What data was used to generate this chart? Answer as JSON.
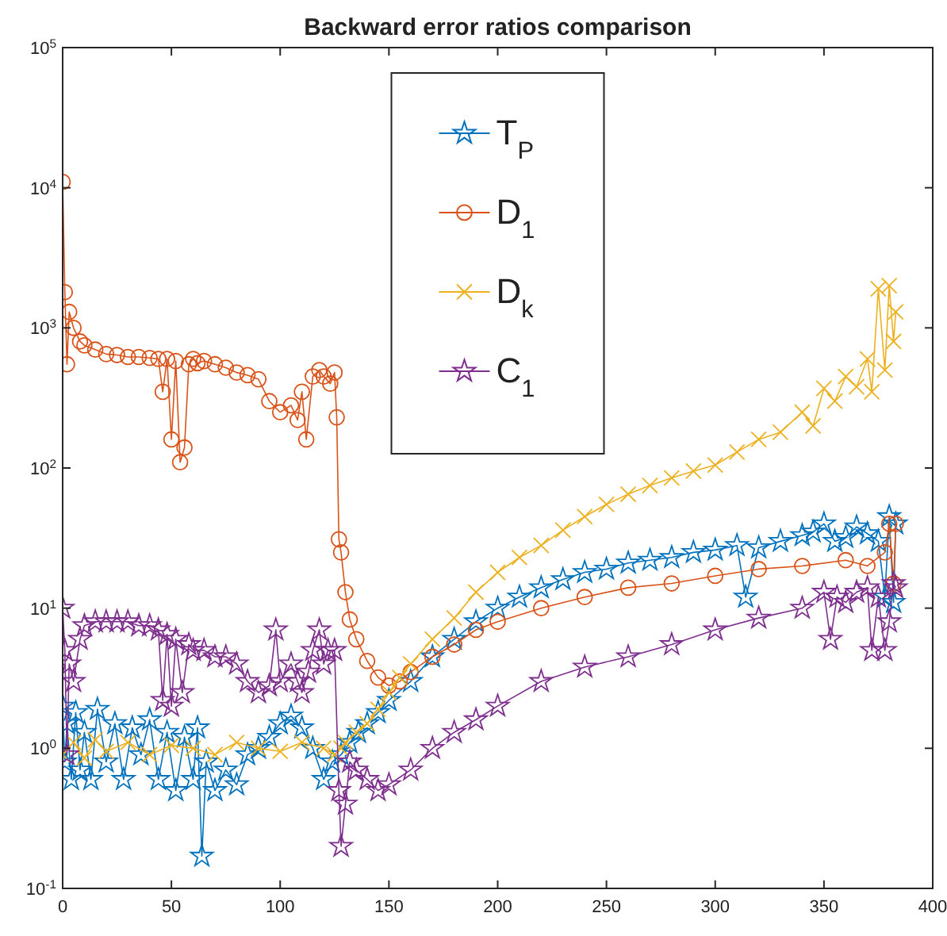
{
  "chart_data": {
    "type": "line",
    "title": "Backward error ratios comparison",
    "log": "y",
    "grid": false,
    "legend": "top",
    "xlim": [
      0,
      400
    ],
    "xticks": [
      0,
      50,
      100,
      150,
      200,
      250,
      300,
      350,
      400
    ],
    "ylim": [
      0.1,
      100000
    ],
    "yticks": [
      {
        "value": 0.1,
        "label": "10$^{-1}$"
      },
      {
        "value": 1,
        "label": "10$^{0}$"
      },
      {
        "value": 10,
        "label": "10$^{1}$"
      },
      {
        "value": 100,
        "label": "10$^{2}$"
      },
      {
        "value": 1000,
        "label": "10$^{3}$"
      },
      {
        "value": 10000,
        "label": "10$^{4}$"
      },
      {
        "value": 100000,
        "label": "10$^{5}$"
      }
    ],
    "series": [
      {
        "name": "T$_{P}$",
        "color": "#0072bd",
        "marker": "star",
        "x": [
          0,
          1,
          2,
          4,
          6,
          8,
          10,
          13,
          16,
          20,
          24,
          28,
          32,
          36,
          40,
          44,
          48,
          52,
          56,
          60,
          62,
          64,
          66,
          70,
          75,
          80,
          85,
          90,
          95,
          100,
          105,
          110,
          115,
          120,
          124,
          128,
          132,
          136,
          140,
          145,
          150,
          160,
          170,
          180,
          190,
          200,
          210,
          220,
          230,
          240,
          250,
          260,
          270,
          280,
          290,
          300,
          310,
          314,
          320,
          330,
          340,
          345,
          350,
          355,
          360,
          365,
          370,
          375,
          378,
          380,
          382,
          383
        ],
        "values": [
          2,
          0.8,
          1.5,
          0.6,
          1.8,
          0.7,
          1.3,
          0.6,
          1.9,
          0.8,
          1.5,
          0.6,
          1.4,
          0.9,
          1.6,
          0.6,
          1.3,
          0.5,
          1.2,
          0.6,
          1.4,
          0.17,
          0.8,
          0.5,
          0.7,
          0.55,
          0.9,
          1.0,
          1.2,
          1.5,
          1.7,
          1.4,
          1.0,
          0.6,
          0.8,
          0.9,
          1.1,
          1.3,
          1.5,
          1.8,
          2.2,
          3,
          4.5,
          6,
          8,
          10,
          12,
          14,
          16,
          18,
          19,
          21,
          22,
          23,
          25,
          26,
          28,
          12,
          27,
          30,
          33,
          35,
          40,
          30,
          32,
          38,
          34,
          30,
          12,
          45,
          11,
          40
        ]
      },
      {
        "name": "D$_{1}$",
        "color": "#d95319",
        "marker": "circle",
        "x": [
          0,
          1,
          2,
          3,
          5,
          8,
          10,
          15,
          20,
          25,
          30,
          35,
          40,
          44,
          46,
          48,
          50,
          52,
          54,
          56,
          58,
          60,
          62,
          65,
          70,
          75,
          80,
          85,
          90,
          95,
          100,
          105,
          108,
          110,
          112,
          115,
          118,
          120,
          123,
          125,
          126,
          127,
          128,
          130,
          132,
          135,
          140,
          145,
          150,
          155,
          160,
          170,
          180,
          190,
          200,
          220,
          240,
          260,
          280,
          300,
          320,
          340,
          360,
          370,
          378,
          380,
          382,
          383
        ],
        "values": [
          11000,
          1800,
          550,
          1300,
          1000,
          800,
          750,
          700,
          650,
          640,
          620,
          620,
          610,
          600,
          350,
          600,
          160,
          580,
          110,
          140,
          550,
          600,
          560,
          580,
          550,
          520,
          480,
          460,
          430,
          300,
          250,
          280,
          220,
          350,
          160,
          450,
          500,
          450,
          400,
          480,
          230,
          31,
          25,
          13,
          8.3,
          6,
          4.2,
          3.2,
          2.8,
          3,
          3.5,
          4.5,
          5.5,
          7,
          8,
          10,
          12,
          14,
          15,
          17,
          19,
          20,
          22,
          20,
          25,
          40,
          15,
          40
        ]
      },
      {
        "name": "D$_{k}$",
        "color": "#edb120",
        "marker": "cross",
        "x": [
          0,
          5,
          10,
          15,
          20,
          30,
          40,
          50,
          60,
          70,
          80,
          90,
          100,
          110,
          120,
          125,
          128,
          130,
          135,
          140,
          145,
          150,
          155,
          160,
          170,
          180,
          190,
          200,
          210,
          220,
          230,
          240,
          250,
          260,
          270,
          280,
          290,
          300,
          310,
          320,
          330,
          340,
          345,
          350,
          355,
          360,
          365,
          370,
          372,
          375,
          378,
          380,
          382,
          383
        ],
        "values": [
          0.9,
          1.1,
          0.85,
          1.15,
          0.95,
          1.1,
          0.9,
          1.05,
          1.0,
          0.9,
          1.1,
          1.0,
          0.95,
          1.1,
          1.0,
          0.9,
          1.0,
          1.1,
          1.3,
          1.5,
          1.9,
          2.5,
          3.2,
          4,
          6,
          8.5,
          13,
          18,
          23,
          28,
          36,
          45,
          55,
          65,
          75,
          85,
          95,
          105,
          130,
          160,
          180,
          250,
          200,
          370,
          300,
          450,
          380,
          600,
          350,
          1900,
          500,
          2000,
          800,
          1300
        ]
      },
      {
        "name": "C$_{1}$",
        "color": "#7e2f8e",
        "marker": "star",
        "x": [
          0,
          1,
          2,
          3,
          5,
          8,
          10,
          15,
          20,
          25,
          30,
          35,
          40,
          44,
          46,
          48,
          50,
          52,
          55,
          58,
          60,
          65,
          70,
          75,
          80,
          85,
          90,
          95,
          98,
          100,
          105,
          108,
          110,
          113,
          115,
          118,
          120,
          122,
          125,
          127,
          128,
          130,
          132,
          135,
          140,
          145,
          150,
          160,
          170,
          180,
          190,
          200,
          220,
          240,
          260,
          280,
          300,
          320,
          340,
          350,
          353,
          356,
          360,
          365,
          370,
          372,
          375,
          378,
          380,
          382,
          383
        ],
        "values": [
          10,
          5,
          0.9,
          4,
          3,
          6,
          7.5,
          8,
          8,
          8,
          8,
          7.5,
          7.5,
          7,
          2.2,
          6.5,
          2,
          6,
          2.5,
          5.5,
          5,
          5,
          4.5,
          4.5,
          4,
          3,
          2.5,
          2.8,
          7,
          3,
          4,
          3,
          2.5,
          3.5,
          5,
          7,
          4,
          5,
          5,
          0.5,
          0.2,
          0.4,
          0.8,
          0.7,
          0.6,
          0.5,
          0.55,
          0.7,
          1.0,
          1.3,
          1.6,
          2,
          3,
          3.8,
          4.5,
          5.5,
          7,
          8.5,
          10,
          13,
          6,
          12,
          11,
          13,
          14,
          5,
          12,
          5,
          8,
          15,
          14
        ]
      }
    ]
  }
}
